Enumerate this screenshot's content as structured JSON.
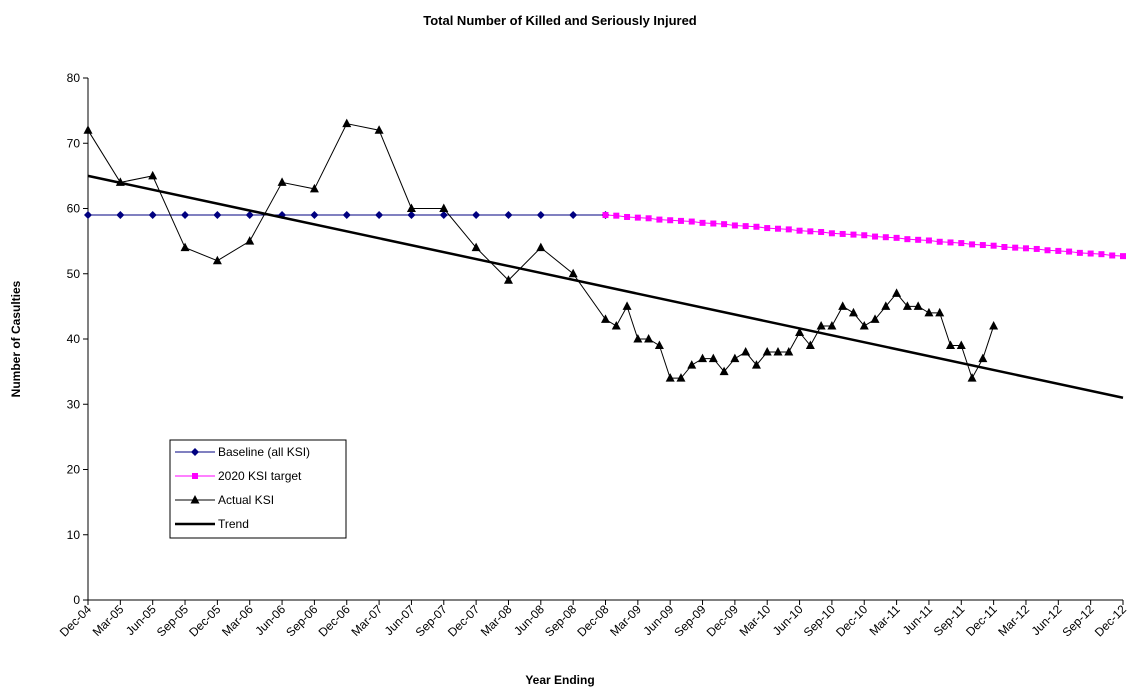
{
  "chart_data": {
    "type": "line",
    "title": "Total Number of Killed and Seriously Injured",
    "xlabel": "Year Ending",
    "ylabel": "Number of Casulties",
    "xlim": [
      "Dec-04",
      "Dec-12"
    ],
    "xticks": [
      "Dec-04",
      "Mar-05",
      "Jun-05",
      "Sep-05",
      "Dec-05",
      "Mar-06",
      "Jun-06",
      "Sep-06",
      "Dec-06",
      "Mar-07",
      "Jun-07",
      "Sep-07",
      "Dec-07",
      "Mar-08",
      "Jun-08",
      "Sep-08",
      "Dec-08",
      "Mar-09",
      "Jun-09",
      "Sep-09",
      "Dec-09",
      "Mar-10",
      "Jun-10",
      "Sep-10",
      "Dec-10",
      "Mar-11",
      "Jun-11",
      "Sep-11",
      "Dec-11",
      "Mar-12",
      "Jun-12",
      "Sep-12",
      "Dec-12"
    ],
    "ylim": [
      0,
      80
    ],
    "yticks": [
      0,
      10,
      20,
      30,
      40,
      50,
      60,
      70,
      80
    ],
    "grid": false,
    "legend": "lower left",
    "series": [
      {
        "name": "Baseline (all KSI)",
        "color": "#000080",
        "marker": "diamond",
        "x": [
          "Dec-04",
          "Mar-05",
          "Jun-05",
          "Sep-05",
          "Dec-05",
          "Mar-06",
          "Jun-06",
          "Sep-06",
          "Dec-06",
          "Mar-07",
          "Jun-07",
          "Sep-07",
          "Dec-07",
          "Mar-08",
          "Jun-08",
          "Sep-08",
          "Dec-08"
        ],
        "values": [
          59,
          59,
          59,
          59,
          59,
          59,
          59,
          59,
          59,
          59,
          59,
          59,
          59,
          59,
          59,
          59,
          59
        ]
      },
      {
        "name": "2020 KSI target",
        "color": "#ff00ff",
        "marker": "square",
        "x": [
          "Dec-08",
          "Jan-09",
          "Feb-09",
          "Mar-09",
          "Apr-09",
          "May-09",
          "Jun-09",
          "Jul-09",
          "Aug-09",
          "Sep-09",
          "Oct-09",
          "Nov-09",
          "Dec-09",
          "Jan-10",
          "Feb-10",
          "Mar-10",
          "Apr-10",
          "May-10",
          "Jun-10",
          "Jul-10",
          "Aug-10",
          "Sep-10",
          "Oct-10",
          "Nov-10",
          "Dec-10",
          "Jan-11",
          "Feb-11",
          "Mar-11",
          "Apr-11",
          "May-11",
          "Jun-11",
          "Jul-11",
          "Aug-11",
          "Sep-11",
          "Oct-11",
          "Nov-11",
          "Dec-11",
          "Jan-12",
          "Feb-12",
          "Mar-12",
          "Apr-12",
          "May-12",
          "Jun-12",
          "Jul-12",
          "Aug-12",
          "Sep-12",
          "Oct-12",
          "Nov-12",
          "Dec-12"
        ],
        "values": [
          59.0,
          58.9,
          58.7,
          58.6,
          58.5,
          58.3,
          58.2,
          58.1,
          58.0,
          57.8,
          57.7,
          57.6,
          57.4,
          57.3,
          57.2,
          57.0,
          56.9,
          56.8,
          56.6,
          56.5,
          56.4,
          56.2,
          56.1,
          56.0,
          55.9,
          55.7,
          55.6,
          55.5,
          55.3,
          55.2,
          55.1,
          54.9,
          54.8,
          54.7,
          54.5,
          54.4,
          54.3,
          54.1,
          54.0,
          53.9,
          53.8,
          53.6,
          53.5,
          53.4,
          53.2,
          53.1,
          53.0,
          52.8,
          52.7
        ]
      },
      {
        "name": "Actual KSI",
        "color": "#000000",
        "marker": "triangle",
        "x": [
          "Dec-04",
          "Mar-05",
          "Jun-05",
          "Sep-05",
          "Dec-05",
          "Mar-06",
          "Jun-06",
          "Sep-06",
          "Dec-06",
          "Mar-07",
          "Jun-07",
          "Sep-07",
          "Dec-07",
          "Mar-08",
          "Jun-08",
          "Sep-08",
          "Dec-08",
          "Jan-09",
          "Feb-09",
          "Mar-09",
          "Apr-09",
          "May-09",
          "Jun-09",
          "Jul-09",
          "Aug-09",
          "Sep-09",
          "Oct-09",
          "Nov-09",
          "Dec-09",
          "Jan-10",
          "Feb-10",
          "Mar-10",
          "Apr-10",
          "May-10",
          "Jun-10",
          "Jul-10",
          "Aug-10",
          "Sep-10",
          "Oct-10",
          "Nov-10",
          "Dec-10",
          "Jan-11",
          "Feb-11",
          "Mar-11",
          "Apr-11",
          "May-11",
          "Jun-11",
          "Jul-11",
          "Aug-11",
          "Sep-11",
          "Oct-11",
          "Nov-11",
          "Dec-11"
        ],
        "values": [
          72,
          64,
          65,
          54,
          52,
          55,
          64,
          63,
          73,
          72,
          60,
          60,
          54,
          49,
          54,
          50,
          43,
          42,
          45,
          40,
          40,
          39,
          34,
          34,
          36,
          37,
          37,
          35,
          37,
          38,
          36,
          38,
          38,
          38,
          41,
          39,
          42,
          42,
          45,
          44,
          42,
          43,
          45,
          47,
          45,
          45,
          44,
          44,
          39,
          39,
          34,
          37,
          42
        ]
      },
      {
        "name": "Trend",
        "color": "#000000",
        "marker": "none",
        "width": 2.5,
        "x": [
          "Dec-04",
          "Dec-12"
        ],
        "values": [
          65,
          31
        ]
      }
    ]
  }
}
